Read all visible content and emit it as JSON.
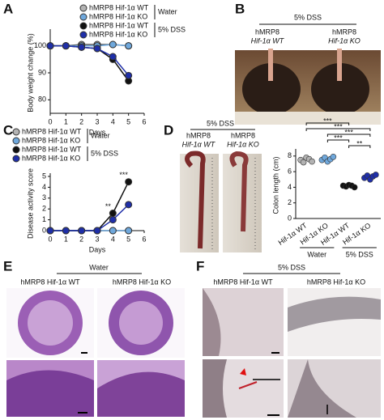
{
  "panel_labels": [
    "A",
    "B",
    "C",
    "D",
    "E",
    "F"
  ],
  "chart_data": [
    {
      "type": "line",
      "y_label": "Body weight change (%)",
      "x_label": "Days",
      "x": [
        0,
        1,
        2,
        3,
        4,
        5
      ],
      "xlim": [
        0,
        6
      ],
      "xticks": [
        0,
        1,
        2,
        3,
        4,
        5,
        6
      ],
      "ylim": [
        75,
        105
      ],
      "yticks": [
        80,
        90,
        100
      ],
      "legend_groups": [
        "Water",
        "5% DSS"
      ],
      "series": [
        {
          "name": "hMRP8 Hif-1α WT",
          "color": "#b3b3b3",
          "values": [
            100,
            100,
            100.5,
            100.5,
            100.5,
            100
          ]
        },
        {
          "name": "hMRP8 Hif-1α KO",
          "color": "#6fa8dc",
          "values": [
            100,
            100,
            100,
            100,
            100.5,
            100
          ]
        },
        {
          "name": "hMRP8 Hif-1α WT",
          "color": "#111111",
          "values": [
            100,
            100,
            99.5,
            99,
            95,
            87
          ]
        },
        {
          "name": "hMRP8 Hif-1α KO",
          "color": "#1f2fa8",
          "values": [
            100,
            100,
            99.5,
            99,
            96,
            89
          ]
        }
      ]
    },
    {
      "type": "line",
      "y_label": "Disease activity score",
      "x_label": "Days",
      "x": [
        0,
        1,
        2,
        3,
        4,
        5
      ],
      "xlim": [
        0,
        6
      ],
      "xticks": [
        0,
        1,
        2,
        3,
        4,
        5,
        6
      ],
      "ylim": [
        0,
        5
      ],
      "yticks": [
        0,
        1,
        2,
        3,
        4,
        5
      ],
      "legend_groups": [
        "Water",
        "5% DSS"
      ],
      "series": [
        {
          "name": "hMRP8 Hif-1α WT",
          "color": "#b3b3b3",
          "values": [
            0,
            0,
            0,
            0,
            0,
            0
          ]
        },
        {
          "name": "hMRP8 Hif-1α KO",
          "color": "#6fa8dc",
          "values": [
            0,
            0,
            0,
            0,
            0,
            0
          ]
        },
        {
          "name": "hMRP8 Hif-1α WT",
          "color": "#111111",
          "values": [
            0,
            0,
            0,
            0,
            1.6,
            4.5
          ]
        },
        {
          "name": "hMRP8 Hif-1α KO",
          "color": "#1f2fa8",
          "values": [
            0,
            0,
            0,
            0,
            1.0,
            2.4
          ]
        }
      ],
      "annotations": [
        {
          "x": 4,
          "label": "**"
        },
        {
          "x": 5,
          "label": "***"
        }
      ]
    },
    {
      "type": "dot",
      "y_label": "Colon length (cm)",
      "categories": [
        "Hif-1α WT",
        "Hif-1α KO",
        "Hif-1α WT",
        "Hif-1α KO"
      ],
      "colors": [
        "#b3b3b3",
        "#6fa8dc",
        "#111111",
        "#1f2fa8"
      ],
      "groups": [
        "Water",
        "5% DSS"
      ],
      "ylim": [
        0,
        8.5
      ],
      "yticks": [
        0,
        2,
        4,
        6,
        8
      ],
      "values": [
        [
          7.5,
          7.2,
          7.8,
          7.6,
          7.3
        ],
        [
          7.5,
          7.8,
          7.3,
          7.6,
          7.9
        ],
        [
          4.2,
          4.1,
          4.3,
          4.2,
          4.0
        ],
        [
          5.2,
          5.5,
          5.0,
          5.4,
          5.6
        ]
      ],
      "comparisons": [
        {
          "pair": [
            2,
            3
          ],
          "label": "**"
        },
        {
          "pair": [
            1,
            2
          ],
          "label": "***"
        },
        {
          "pair": [
            1,
            3
          ],
          "label": "***"
        },
        {
          "pair": [
            0,
            3
          ],
          "label": "***"
        },
        {
          "pair": [
            0,
            2
          ],
          "label": "***"
        }
      ]
    }
  ],
  "photo_b": {
    "header": "5% DSS",
    "labels": [
      [
        "hMRP8",
        "Hif-1α WT"
      ],
      [
        "hMRP8",
        "Hif-1α KO"
      ]
    ]
  },
  "photo_d": {
    "header": "5% DSS",
    "labels": [
      [
        "hMRP8",
        "Hif-1α WT"
      ],
      [
        "hMRP8",
        "Hif-1α KO"
      ]
    ]
  },
  "histology_e": {
    "header": "Water",
    "labels": [
      "hMRP8 Hif-1α WT",
      "hMRP8 Hif-1α KO"
    ]
  },
  "histology_f": {
    "header": "5% DSS",
    "labels": [
      "hMRP8 Hif-1α WT",
      "hMRP8 Hif-1α KO"
    ]
  }
}
